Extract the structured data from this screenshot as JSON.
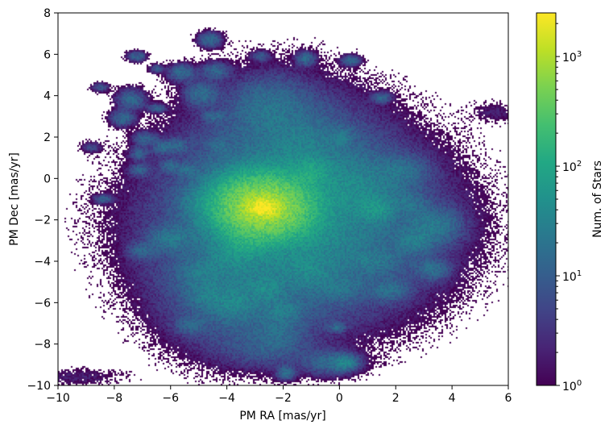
{
  "chart_data": {
    "type": "heatmap",
    "subtype": "2d-histogram",
    "xlabel": "PM RA [mas/yr]",
    "ylabel": "PM Dec [mas/yr]",
    "xlim": [
      -10,
      6
    ],
    "ylim": [
      -10,
      8
    ],
    "xticks": [
      -10,
      -8,
      -6,
      -4,
      -2,
      0,
      2,
      4,
      6
    ],
    "yticks": [
      -10,
      -8,
      -6,
      -4,
      -2,
      0,
      2,
      4,
      6,
      8
    ],
    "xtick_labels": [
      "−10",
      "−8",
      "−6",
      "−4",
      "−2",
      "0",
      "2",
      "4",
      "6"
    ],
    "ytick_labels": [
      "−10",
      "−8",
      "−6",
      "−4",
      "−2",
      "0",
      "2",
      "4",
      "6",
      "8"
    ],
    "grid": false,
    "colormap": "viridis",
    "colorbar": {
      "label": "Num. of Stars",
      "scale": "log",
      "range": [
        1,
        2500
      ],
      "ticks": [
        {
          "value": 1,
          "base": "10",
          "exp": "0"
        },
        {
          "value": 10,
          "base": "10",
          "exp": "1"
        },
        {
          "value": 100,
          "base": "10",
          "exp": "2"
        },
        {
          "value": 1000,
          "base": "10",
          "exp": "3"
        }
      ]
    },
    "peak": {
      "x": -2.7,
      "y": -1.4,
      "count": 2500
    },
    "clumps": [
      {
        "x": -2.7,
        "y": -1.4,
        "sx": 0.9,
        "sy": 0.8,
        "count": 900
      },
      {
        "x": -2.7,
        "y": -1.4,
        "sx": 0.3,
        "sy": 0.25,
        "count": 2000
      },
      {
        "x": -1.5,
        "y": -2.2,
        "sx": 2.6,
        "sy": 2.4,
        "count": 30
      },
      {
        "x": -2.0,
        "y": 1.0,
        "sx": 1.8,
        "sy": 2.0,
        "count": 12
      },
      {
        "x": -3.5,
        "y": -5.5,
        "sx": 1.5,
        "sy": 1.6,
        "count": 14
      },
      {
        "x": 0.5,
        "y": -0.5,
        "sx": 1.0,
        "sy": 0.9,
        "count": 25
      },
      {
        "x": -1.0,
        "y": 0.3,
        "sx": 0.4,
        "sy": 0.4,
        "count": 60
      },
      {
        "x": 1.3,
        "y": -1.5,
        "sx": 0.35,
        "sy": 0.35,
        "count": 45
      },
      {
        "x": 3.3,
        "y": -2.3,
        "sx": 0.6,
        "sy": 0.5,
        "count": 20
      },
      {
        "x": 2.7,
        "y": -3.1,
        "sx": 0.4,
        "sy": 0.35,
        "count": 18
      },
      {
        "x": 3.3,
        "y": -4.4,
        "sx": 0.35,
        "sy": 0.3,
        "count": 15
      },
      {
        "x": 1.8,
        "y": -5.4,
        "sx": 0.4,
        "sy": 0.3,
        "count": 14
      },
      {
        "x": 0.0,
        "y": -5.3,
        "sx": 0.5,
        "sy": 0.35,
        "count": 12
      },
      {
        "x": -1.1,
        "y": -4.4,
        "sx": 0.6,
        "sy": 0.5,
        "count": 20
      },
      {
        "x": -3.3,
        "y": -3.1,
        "sx": 0.5,
        "sy": 0.45,
        "count": 40
      },
      {
        "x": -6.0,
        "y": -2.9,
        "sx": 0.45,
        "sy": 0.35,
        "count": 18
      },
      {
        "x": -5.0,
        "y": -4.6,
        "sx": 0.45,
        "sy": 0.4,
        "count": 12
      },
      {
        "x": -2.2,
        "y": -7.5,
        "sx": 0.5,
        "sy": 0.5,
        "count": 10
      },
      {
        "x": -2.5,
        "y": -8.3,
        "sx": 1.0,
        "sy": 0.5,
        "count": 6
      },
      {
        "x": -0.3,
        "y": -8.9,
        "sx": 0.6,
        "sy": 0.35,
        "count": 14
      },
      {
        "x": 0.2,
        "y": -8.9,
        "sx": 0.25,
        "sy": 0.2,
        "count": 30
      },
      {
        "x": -1.9,
        "y": -9.4,
        "sx": 0.2,
        "sy": 0.2,
        "count": 15
      },
      {
        "x": -0.1,
        "y": -7.2,
        "sx": 0.18,
        "sy": 0.14,
        "count": 12
      },
      {
        "x": -7.4,
        "y": 3.8,
        "sx": 0.3,
        "sy": 0.3,
        "count": 14
      },
      {
        "x": -7.7,
        "y": 2.9,
        "sx": 0.25,
        "sy": 0.22,
        "count": 14
      },
      {
        "x": -6.9,
        "y": 1.9,
        "sx": 0.25,
        "sy": 0.2,
        "count": 12
      },
      {
        "x": -6.3,
        "y": 1.5,
        "sx": 0.2,
        "sy": 0.2,
        "count": 12
      },
      {
        "x": -7.1,
        "y": 1.2,
        "sx": 0.2,
        "sy": 0.2,
        "count": 10
      },
      {
        "x": -7.1,
        "y": 0.4,
        "sx": 0.22,
        "sy": 0.18,
        "count": 10
      },
      {
        "x": -6.0,
        "y": 0.6,
        "sx": 0.2,
        "sy": 0.18,
        "count": 12
      },
      {
        "x": -5.4,
        "y": 0.4,
        "sx": 0.22,
        "sy": 0.18,
        "count": 12
      },
      {
        "x": -5.8,
        "y": 1.6,
        "sx": 0.25,
        "sy": 0.2,
        "count": 12
      },
      {
        "x": -5.6,
        "y": 5.1,
        "sx": 0.3,
        "sy": 0.25,
        "count": 14
      },
      {
        "x": -4.9,
        "y": 4.1,
        "sx": 0.35,
        "sy": 0.35,
        "count": 15
      },
      {
        "x": -4.4,
        "y": 5.2,
        "sx": 0.3,
        "sy": 0.25,
        "count": 12
      },
      {
        "x": -4.6,
        "y": 6.7,
        "sx": 0.25,
        "sy": 0.22,
        "count": 14
      },
      {
        "x": -7.2,
        "y": 5.9,
        "sx": 0.2,
        "sy": 0.15,
        "count": 12
      },
      {
        "x": -6.5,
        "y": 5.3,
        "sx": 0.15,
        "sy": 0.13,
        "count": 8
      },
      {
        "x": -8.5,
        "y": 4.4,
        "sx": 0.18,
        "sy": 0.13,
        "count": 8
      },
      {
        "x": -8.8,
        "y": 1.5,
        "sx": 0.2,
        "sy": 0.15,
        "count": 6
      },
      {
        "x": -8.4,
        "y": -1.0,
        "sx": 0.2,
        "sy": 0.13,
        "count": 10
      },
      {
        "x": -4.5,
        "y": 3.0,
        "sx": 0.22,
        "sy": 0.15,
        "count": 12
      },
      {
        "x": -4.3,
        "y": 1.6,
        "sx": 0.2,
        "sy": 0.18,
        "count": 10
      },
      {
        "x": -6.5,
        "y": 3.4,
        "sx": 0.2,
        "sy": 0.12,
        "count": 12
      },
      {
        "x": -1.2,
        "y": 5.8,
        "sx": 0.2,
        "sy": 0.2,
        "count": 14
      },
      {
        "x": -2.8,
        "y": 5.9,
        "sx": 0.2,
        "sy": 0.15,
        "count": 8
      },
      {
        "x": 0.4,
        "y": 5.7,
        "sx": 0.2,
        "sy": 0.15,
        "count": 14
      },
      {
        "x": 1.5,
        "y": 3.9,
        "sx": 0.2,
        "sy": 0.15,
        "count": 12
      },
      {
        "x": -2.5,
        "y": 3.5,
        "sx": 0.8,
        "sy": 0.8,
        "count": 14
      },
      {
        "x": -1.4,
        "y": 1.5,
        "sx": 0.8,
        "sy": 0.9,
        "count": 14
      },
      {
        "x": -3.4,
        "y": -0.5,
        "sx": 0.7,
        "sy": 0.6,
        "count": 15
      },
      {
        "x": -1.0,
        "y": -2.8,
        "sx": 1.1,
        "sy": 0.8,
        "count": 14
      },
      {
        "x": -3.8,
        "y": -3.8,
        "sx": 0.6,
        "sy": 0.5,
        "count": 20
      },
      {
        "x": -3.8,
        "y": -6.0,
        "sx": 0.5,
        "sy": 0.5,
        "count": 20
      },
      {
        "x": -4.7,
        "y": -5.6,
        "sx": 0.4,
        "sy": 0.4,
        "count": 15
      },
      {
        "x": -2.6,
        "y": -5.3,
        "sx": 0.35,
        "sy": 0.35,
        "count": 22
      },
      {
        "x": -2.0,
        "y": -6.4,
        "sx": 0.4,
        "sy": 0.35,
        "count": 15
      },
      {
        "x": -5.3,
        "y": -7.1,
        "sx": 0.3,
        "sy": 0.25,
        "count": 10
      },
      {
        "x": 2.3,
        "y": 0.4,
        "sx": 0.5,
        "sy": 0.4,
        "count": 12
      },
      {
        "x": 1.2,
        "y": -4.0,
        "sx": 0.6,
        "sy": 0.4,
        "count": 12
      },
      {
        "x": -7.0,
        "y": -3.5,
        "sx": 0.3,
        "sy": 0.25,
        "count": 10
      },
      {
        "x": -5.1,
        "y": -1.2,
        "sx": 0.3,
        "sy": 0.3,
        "count": 12
      },
      {
        "x": 0.1,
        "y": 2.0,
        "sx": 0.25,
        "sy": 0.25,
        "count": 14
      },
      {
        "x": 2.5,
        "y": -1.2,
        "sx": 0.4,
        "sy": 0.3,
        "count": 10
      },
      {
        "x": -9.3,
        "y": -9.6,
        "sx": 1.0,
        "sy": 0.25,
        "count": 2
      },
      {
        "x": 5.5,
        "y": 3.2,
        "sx": 0.5,
        "sy": 0.3,
        "count": 2
      }
    ]
  }
}
